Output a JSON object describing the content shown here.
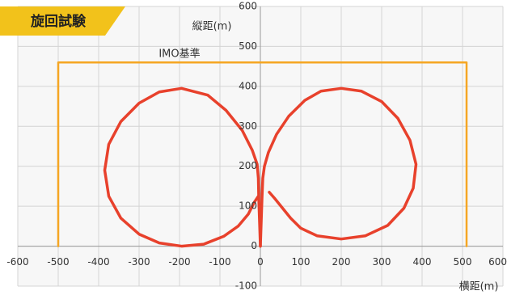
{
  "chart_data": {
    "type": "line",
    "title": "旋回試験",
    "xlabel": "横距(m)",
    "ylabel": "縦距(m)",
    "xlim": [
      -600,
      600
    ],
    "ylim": [
      -100,
      600
    ],
    "xticks": [
      -600,
      -500,
      -400,
      -300,
      -200,
      -100,
      0,
      100,
      200,
      300,
      400,
      500,
      600
    ],
    "yticks": [
      -100,
      0,
      100,
      200,
      300,
      400,
      500,
      600
    ],
    "grid": true,
    "series": [
      {
        "color": "#e8412c",
        "x": [
          0,
          2,
          4,
          6,
          10,
          20,
          40,
          70,
          110,
          150,
          200,
          250,
          300,
          340,
          370,
          385,
          378,
          355,
          315,
          260,
          200,
          140,
          100,
          75,
          55,
          35,
          22
        ],
        "values": [
          0,
          60,
          120,
          170,
          200,
          235,
          280,
          325,
          365,
          388,
          395,
          388,
          362,
          320,
          265,
          205,
          145,
          95,
          52,
          26,
          18,
          26,
          45,
          70,
          95,
          120,
          135
        ]
      },
      {
        "color": "#e8412c",
        "x": [
          0,
          -2,
          -4,
          -5,
          -8,
          -20,
          -45,
          -85,
          -130,
          -195,
          -250,
          -300,
          -345,
          -375,
          -385,
          -375,
          -345,
          -300,
          -250,
          -195,
          -140,
          -90,
          -55,
          -30,
          -15,
          -5
        ],
        "values": [
          0,
          60,
          120,
          170,
          205,
          240,
          290,
          340,
          378,
          395,
          386,
          358,
          312,
          255,
          190,
          125,
          70,
          30,
          8,
          0,
          5,
          25,
          50,
          80,
          110,
          125
        ]
      },
      {
        "name": "IMO基準",
        "color": "#f5a623",
        "x": [
          -500,
          -500,
          510,
          510
        ],
        "values": [
          0,
          460,
          460,
          0
        ]
      }
    ]
  }
}
